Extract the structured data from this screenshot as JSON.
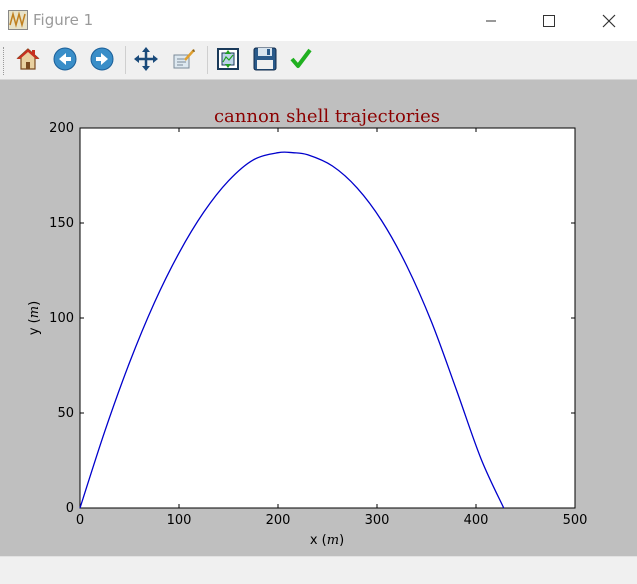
{
  "window": {
    "title": "Figure 1",
    "controls": [
      "minimize",
      "maximize",
      "close"
    ]
  },
  "toolbar": {
    "buttons": [
      {
        "name": "home",
        "icon": "home-icon"
      },
      {
        "name": "back",
        "icon": "back-arrow-icon"
      },
      {
        "name": "forward",
        "icon": "forward-arrow-icon"
      },
      {
        "name": "pan",
        "icon": "pan-arrows-icon"
      },
      {
        "name": "zoom",
        "icon": "zoom-rect-icon"
      },
      {
        "name": "configure-subplots",
        "icon": "subplots-icon"
      },
      {
        "name": "save",
        "icon": "floppy-disk-icon"
      },
      {
        "name": "edit-parameters",
        "icon": "checkmark-icon"
      }
    ]
  },
  "colors": {
    "canvas_bg": "#bfbfbf",
    "title": "#8b0000",
    "line": "#0000cc"
  },
  "chart_data": {
    "type": "line",
    "title": "cannon shell trajectories",
    "xlabel": "x (m)",
    "xlabel_parts": {
      "base": "x ",
      "var": "m"
    },
    "ylabel": "y (m)",
    "ylabel_parts": {
      "base": "y ",
      "var": "m"
    },
    "xlim": [
      0,
      500
    ],
    "ylim": [
      0,
      200
    ],
    "xticks": [
      0,
      100,
      200,
      300,
      400,
      500
    ],
    "yticks": [
      0,
      50,
      100,
      150,
      200
    ],
    "grid": false,
    "series": [
      {
        "color": "#0000cc",
        "x": [
          0,
          25,
          50,
          75,
          100,
          125,
          150,
          175,
          200,
          215,
          230,
          255,
          280,
          305,
          330,
          355,
          380,
          405,
          428
        ],
        "y": [
          0,
          40.3,
          76.5,
          107.9,
          134.2,
          155.7,
          172.2,
          183.2,
          187.0,
          187.0,
          185.9,
          180.0,
          168.4,
          151.0,
          127.5,
          98.0,
          62.5,
          26.0,
          0
        ]
      }
    ]
  }
}
